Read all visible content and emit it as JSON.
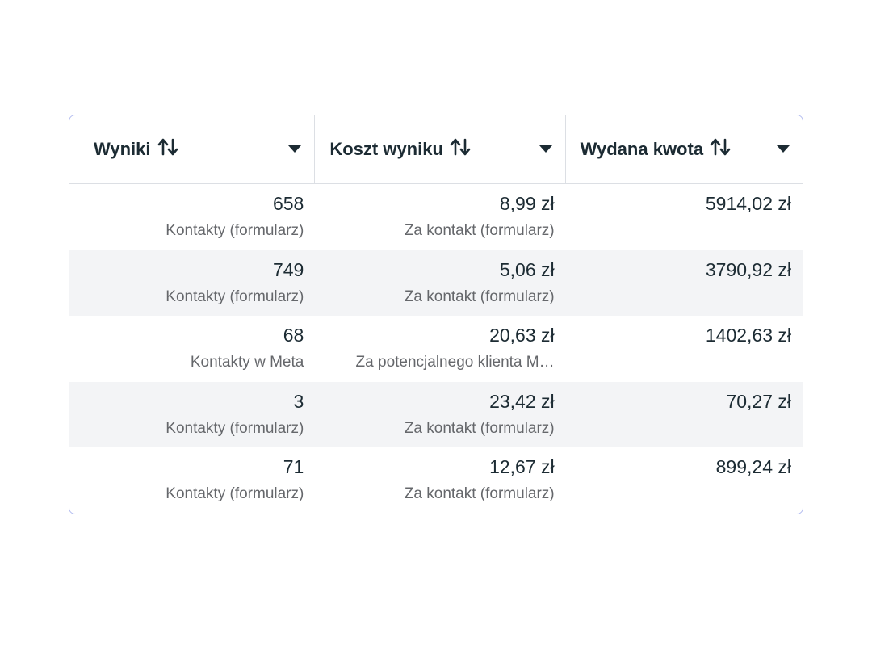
{
  "table": {
    "columns": [
      {
        "label": "Wyniki",
        "sort_icon": "sort-arrows-icon",
        "menu_icon": "caret-down-icon"
      },
      {
        "label": "Koszt wyniku",
        "sort_icon": "sort-arrows-icon",
        "menu_icon": "caret-down-icon"
      },
      {
        "label": "Wydana kwota",
        "sort_icon": "sort-arrows-icon",
        "menu_icon": "caret-down-icon"
      }
    ],
    "rows": [
      {
        "results": "658",
        "results_type": "Kontakty (formularz)",
        "cost": "8,99 zł",
        "cost_type": "Za kontakt (formularz)",
        "spent": "5914,02 zł"
      },
      {
        "results": "749",
        "results_type": "Kontakty (formularz)",
        "cost": "5,06 zł",
        "cost_type": "Za kontakt (formularz)",
        "spent": "3790,92 zł"
      },
      {
        "results": "68",
        "results_type": "Kontakty w Meta",
        "cost": "20,63 zł",
        "cost_type": "Za potencjalnego klienta M…",
        "spent": "1402,63 zł"
      },
      {
        "results": "3",
        "results_type": "Kontakty (formularz)",
        "cost": "23,42 zł",
        "cost_type": "Za kontakt (formularz)",
        "spent": "70,27 zł"
      },
      {
        "results": "71",
        "results_type": "Kontakty (formularz)",
        "cost": "12,67 zł",
        "cost_type": "Za kontakt (formularz)",
        "spent": "899,24 zł"
      }
    ]
  },
  "colors": {
    "border": "#b4bdf0",
    "text": "#1c2b33",
    "subtext": "#65676b",
    "alt_row": "#f3f4f6"
  }
}
